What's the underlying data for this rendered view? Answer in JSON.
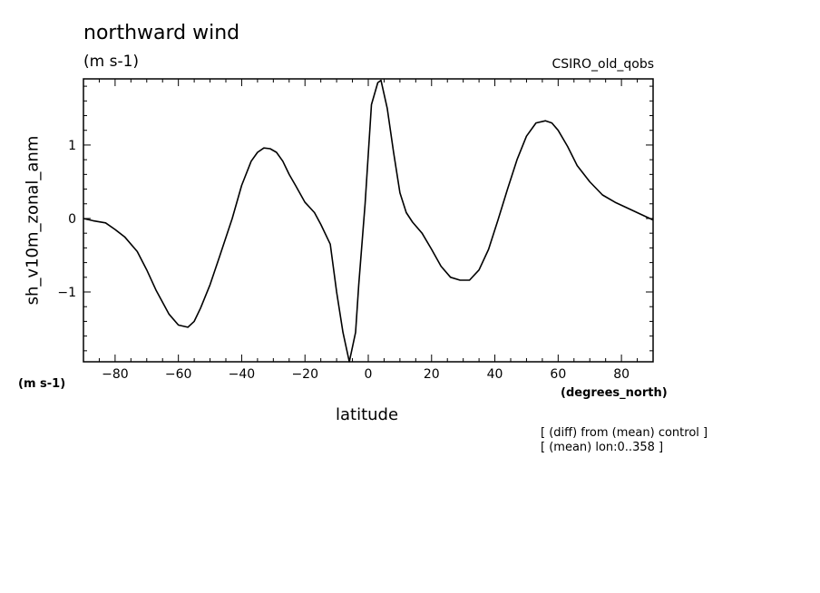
{
  "header": {
    "title": "northward wind",
    "units": "(m s-1)",
    "model": "CSIRO_old_qobs"
  },
  "axes": {
    "ylabel": "sh_v10m_zonal_anm",
    "yunits": "(m s-1)",
    "xlabel": "latitude",
    "xunits": "(degrees_north)"
  },
  "notes": {
    "line1": "[ (diff) from (mean) control ]",
    "line2": "[ (mean) lon:0..358 ]"
  },
  "chart_data": {
    "type": "line",
    "title": "northward wind",
    "xlabel": "latitude",
    "ylabel": "sh_v10m_zonal_anm",
    "xlim": [
      -90,
      90
    ],
    "ylim": [
      -1.95,
      1.9
    ],
    "xticks": [
      -80,
      -60,
      -40,
      -20,
      0,
      20,
      40,
      60,
      80
    ],
    "yticks": [
      -1,
      0,
      1
    ],
    "grid": false,
    "series": [
      {
        "x": [
          -90,
          -87,
          -83,
          -80,
          -77,
          -73,
          -70,
          -67,
          -63,
          -60,
          -57,
          -55,
          -53,
          -50,
          -47,
          -43,
          -40,
          -37,
          -35,
          -33,
          -31,
          -29,
          -27,
          -25,
          -23,
          -20,
          -17,
          -15,
          -12,
          -10,
          -8,
          -6,
          -4,
          -3,
          -1,
          1,
          3,
          4,
          6,
          8,
          10,
          12,
          14,
          17,
          20,
          23,
          26,
          29,
          32,
          35,
          38,
          41,
          44,
          47,
          50,
          53,
          56,
          58,
          60,
          63,
          66,
          70,
          74,
          78,
          82,
          86,
          90
        ],
        "y": [
          0.0,
          -0.03,
          -0.06,
          -0.15,
          -0.25,
          -0.45,
          -0.7,
          -0.98,
          -1.3,
          -1.45,
          -1.48,
          -1.4,
          -1.22,
          -0.9,
          -0.52,
          0.0,
          0.45,
          0.78,
          0.9,
          0.96,
          0.95,
          0.9,
          0.78,
          0.6,
          0.45,
          0.22,
          0.08,
          -0.08,
          -0.35,
          -1.0,
          -1.55,
          -1.95,
          -1.55,
          -0.9,
          0.2,
          1.55,
          1.85,
          1.88,
          1.5,
          0.9,
          0.35,
          0.08,
          -0.05,
          -0.2,
          -0.42,
          -0.65,
          -0.8,
          -0.84,
          -0.84,
          -0.7,
          -0.42,
          -0.02,
          0.4,
          0.8,
          1.12,
          1.3,
          1.33,
          1.3,
          1.2,
          0.98,
          0.72,
          0.5,
          0.32,
          0.22,
          0.14,
          0.06,
          -0.02
        ]
      }
    ]
  }
}
